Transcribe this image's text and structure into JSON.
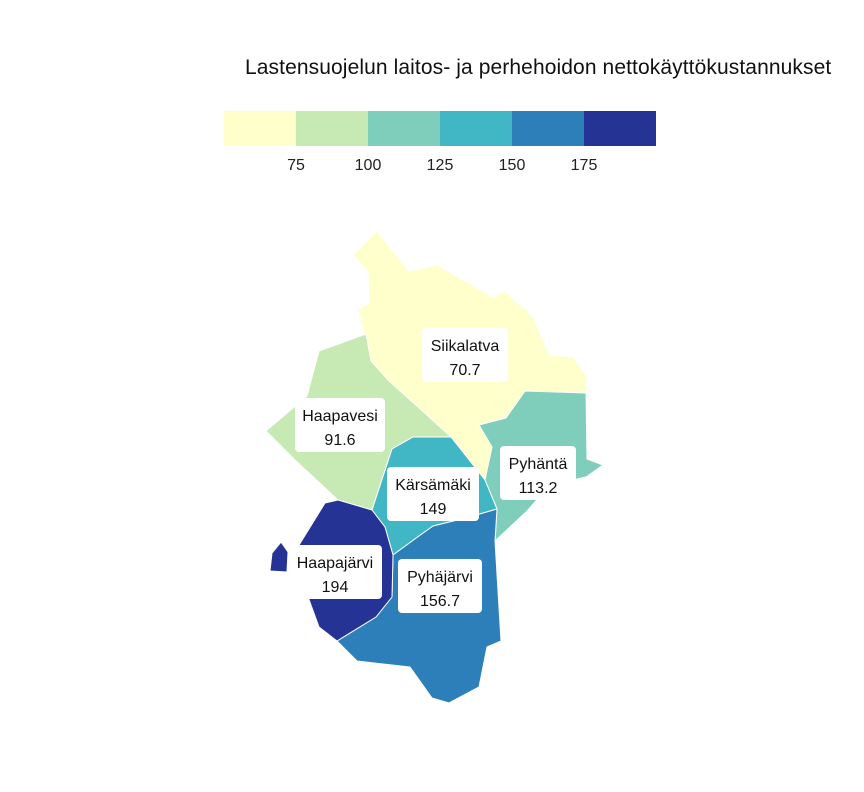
{
  "title": "Lastensuojelun laitos- ja perhehoidon nettokäyttökustannukset",
  "legend": {
    "colors": [
      "#ffffcc",
      "#c7e9b4",
      "#7fcdbb",
      "#41b6c4",
      "#2c7fb8",
      "#253494"
    ],
    "ticks": [
      "75",
      "100",
      "125",
      "150",
      "175"
    ]
  },
  "regions": [
    {
      "name": "Siikalatva",
      "value": "70.7",
      "color": "#ffffcc"
    },
    {
      "name": "Haapavesi",
      "value": "91.6",
      "color": "#c7e9b4"
    },
    {
      "name": "Pyhäntä",
      "value": "113.2",
      "color": "#7fcdbb"
    },
    {
      "name": "Kärsämäki",
      "value": "149",
      "color": "#41b6c4"
    },
    {
      "name": "Pyhäjärvi",
      "value": "156.7",
      "color": "#2c7fb8"
    },
    {
      "name": "Haapajärvi",
      "value": "194",
      "color": "#253494"
    }
  ]
}
